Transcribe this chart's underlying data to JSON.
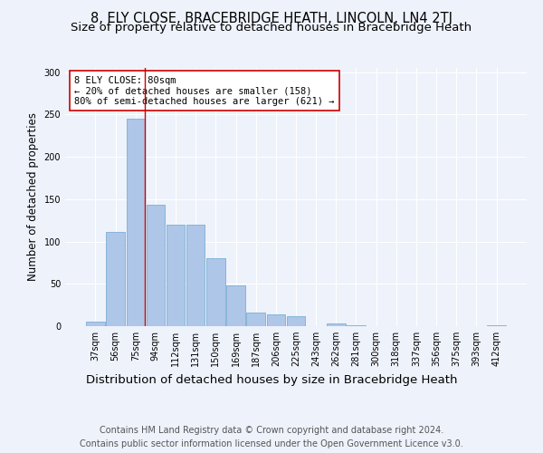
{
  "title1": "8, ELY CLOSE, BRACEBRIDGE HEATH, LINCOLN, LN4 2TJ",
  "title2": "Size of property relative to detached houses in Bracebridge Heath",
  "xlabel": "Distribution of detached houses by size in Bracebridge Heath",
  "ylabel": "Number of detached properties",
  "footer1": "Contains HM Land Registry data © Crown copyright and database right 2024.",
  "footer2": "Contains public sector information licensed under the Open Government Licence v3.0.",
  "bar_labels": [
    "37sqm",
    "56sqm",
    "75sqm",
    "94sqm",
    "112sqm",
    "131sqm",
    "150sqm",
    "169sqm",
    "187sqm",
    "206sqm",
    "225sqm",
    "243sqm",
    "262sqm",
    "281sqm",
    "300sqm",
    "318sqm",
    "337sqm",
    "356sqm",
    "375sqm",
    "393sqm",
    "412sqm"
  ],
  "bar_values": [
    5,
    111,
    245,
    143,
    120,
    120,
    80,
    48,
    16,
    14,
    12,
    0,
    3,
    1,
    0,
    0,
    0,
    0,
    0,
    0,
    1
  ],
  "bar_color": "#aec6e8",
  "bar_edge_color": "#7bafd4",
  "vline_x_index": 2,
  "vline_color": "#cc0000",
  "annotation_text": "8 ELY CLOSE: 80sqm\n← 20% of detached houses are smaller (158)\n80% of semi-detached houses are larger (621) →",
  "annotation_box_color": "#ffffff",
  "annotation_box_edge": "#cc0000",
  "ylim": [
    0,
    305
  ],
  "yticks": [
    0,
    50,
    100,
    150,
    200,
    250,
    300
  ],
  "background_color": "#eef2fb",
  "grid_color": "#ffffff",
  "title1_fontsize": 10.5,
  "title2_fontsize": 9.5,
  "xlabel_fontsize": 9.5,
  "ylabel_fontsize": 8.5,
  "tick_fontsize": 7,
  "footer_fontsize": 7,
  "annot_fontsize": 7.5
}
